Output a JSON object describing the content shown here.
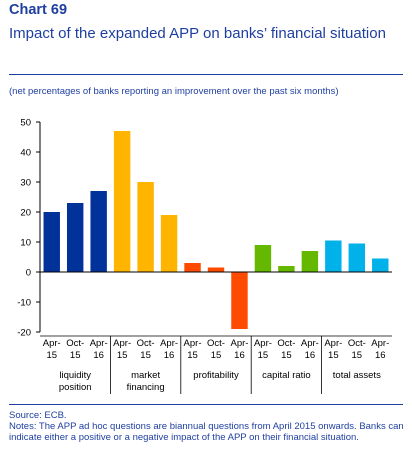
{
  "header": {
    "chart_number": "Chart 69",
    "title": "Impact of the expanded APP on banks’ financial situation",
    "subtitle": "(net percentages of banks reporting an improvement over the past six months)"
  },
  "footer": {
    "source": "Source: ECB.",
    "notes": "Notes: The APP ad hoc questions are biannual questions from April 2015 onwards. Banks can indicate either a positive or a negative impact of the APP on their financial situation."
  },
  "chart_data": {
    "type": "bar",
    "ylim": [
      -20,
      50
    ],
    "yticks": [
      50,
      40,
      30,
      20,
      10,
      0,
      -10,
      -20
    ],
    "grid": false,
    "groups": [
      {
        "name": "liquidity position",
        "label_lines": [
          "liquidity",
          "position"
        ],
        "color": "#003299",
        "bars": [
          {
            "x": [
              "Apr-",
              "15"
            ],
            "value": 20
          },
          {
            "x": [
              "Oct-",
              "15"
            ],
            "value": 23
          },
          {
            "x": [
              "Apr-",
              "16"
            ],
            "value": 27
          }
        ]
      },
      {
        "name": "market financing",
        "label_lines": [
          "market",
          "financing"
        ],
        "color": "#ffb400",
        "bars": [
          {
            "x": [
              "Apr-",
              "15"
            ],
            "value": 47
          },
          {
            "x": [
              "Oct-",
              "15"
            ],
            "value": 30
          },
          {
            "x": [
              "Apr-",
              "16"
            ],
            "value": 19
          }
        ]
      },
      {
        "name": "profitability",
        "label_lines": [
          "profitability"
        ],
        "color": "#ff4b00",
        "bars": [
          {
            "x": [
              "Apr-",
              "15"
            ],
            "value": 3
          },
          {
            "x": [
              "Oct-",
              "15"
            ],
            "value": 1.5
          },
          {
            "x": [
              "Apr-",
              "16"
            ],
            "value": -19
          }
        ]
      },
      {
        "name": "capital ratio",
        "label_lines": [
          "capital ratio"
        ],
        "color": "#65b800",
        "bars": [
          {
            "x": [
              "Apr-",
              "15"
            ],
            "value": 9
          },
          {
            "x": [
              "Oct-",
              "15"
            ],
            "value": 2
          },
          {
            "x": [
              "Apr-",
              "16"
            ],
            "value": 7
          }
        ]
      },
      {
        "name": "total assets",
        "label_lines": [
          "total assets"
        ],
        "color": "#00b1ea",
        "bars": [
          {
            "x": [
              "Apr-",
              "15"
            ],
            "value": 10.5
          },
          {
            "x": [
              "Oct-",
              "15"
            ],
            "value": 9.5
          },
          {
            "x": [
              "Apr-",
              "16"
            ],
            "value": 4.5
          }
        ]
      }
    ]
  }
}
